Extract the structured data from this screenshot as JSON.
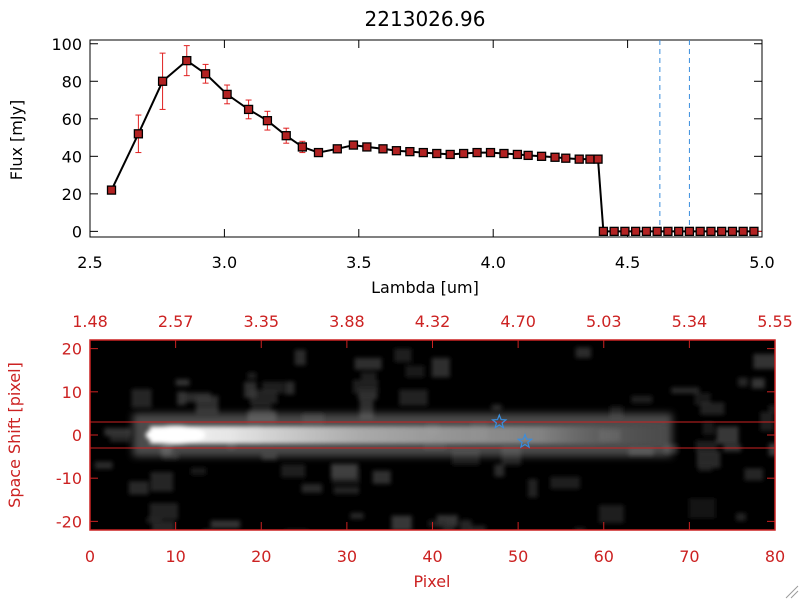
{
  "colors": {
    "axis": "#000000",
    "spectrum_line": "#000000",
    "spectrum_marker": "#b22222",
    "error_bar": "#e02020",
    "marker_line": "#3a8ddd",
    "image_frame": "#cc2222",
    "image_text": "#cc2222",
    "star": "#3a8ddd"
  },
  "chart_data": [
    {
      "type": "line",
      "title": "2213026.96",
      "xlabel": "Lambda [um]",
      "ylabel": "Flux [mJy]",
      "xlim": [
        2.5,
        5.0
      ],
      "ylim": [
        -3,
        102
      ],
      "x_ticks": [
        "2.5",
        "3.0",
        "3.5",
        "4.0",
        "4.5",
        "5.0"
      ],
      "x_tick_values": [
        2.5,
        3.0,
        3.5,
        4.0,
        4.5,
        5.0
      ],
      "y_ticks": [
        "0",
        "20",
        "40",
        "60",
        "80",
        "100"
      ],
      "y_tick_values": [
        0,
        20,
        40,
        60,
        80,
        100
      ],
      "series": [
        {
          "name": "flux",
          "x": [
            2.58,
            2.68,
            2.77,
            2.86,
            2.93,
            3.01,
            3.09,
            3.16,
            3.23,
            3.29,
            3.35,
            3.42,
            3.48,
            3.53,
            3.59,
            3.64,
            3.69,
            3.74,
            3.79,
            3.84,
            3.89,
            3.94,
            3.99,
            4.04,
            4.09,
            4.13,
            4.18,
            4.23,
            4.27,
            4.32,
            4.36,
            4.39,
            4.41,
            4.45,
            4.49,
            4.53,
            4.57,
            4.61,
            4.65,
            4.69,
            4.73,
            4.77,
            4.81,
            4.85,
            4.89,
            4.93,
            4.97
          ],
          "y": [
            22,
            52,
            80,
            91,
            84,
            73,
            65,
            59,
            51,
            45,
            42,
            44,
            46,
            45,
            44,
            43,
            42.5,
            42,
            41.5,
            41,
            41.5,
            42,
            42,
            41.5,
            41,
            40.5,
            40,
            39.5,
            39,
            38.5,
            38.5,
            38.5,
            0,
            0,
            0,
            0,
            0,
            0,
            0,
            0,
            0,
            0,
            0,
            0,
            0,
            0,
            0
          ],
          "yerr": [
            0,
            10,
            15,
            8,
            5,
            5,
            5,
            5,
            4,
            3,
            0,
            0,
            0,
            0,
            0,
            0,
            0,
            0,
            0,
            0,
            0,
            0,
            0,
            0,
            0,
            0,
            0,
            0,
            0,
            0,
            0,
            0,
            0,
            0,
            0,
            0,
            0,
            0,
            0,
            0,
            0,
            0,
            0,
            0,
            0,
            0,
            0
          ]
        }
      ],
      "vertical_lines": [
        4.62,
        4.73
      ]
    },
    {
      "type": "heatmap",
      "xlabel": "Pixel",
      "ylabel": "Space Shift [pixel]",
      "xlim": [
        0,
        80
      ],
      "ylim": [
        -22,
        22
      ],
      "x_ticks": [
        "0",
        "10",
        "20",
        "30",
        "40",
        "50",
        "60",
        "70",
        "80"
      ],
      "x_tick_values": [
        0,
        10,
        20,
        30,
        40,
        50,
        60,
        70,
        80
      ],
      "y_ticks": [
        "-20",
        "-10",
        "0",
        "10",
        "20"
      ],
      "y_tick_values": [
        -20,
        -10,
        0,
        10,
        20
      ],
      "top_axis_ticks": [
        "1.48",
        "2.57",
        "3.35",
        "3.88",
        "4.32",
        "4.70",
        "5.03",
        "5.34",
        "5.55"
      ],
      "top_axis_tick_values": [
        0,
        10,
        20,
        30,
        40,
        50,
        60,
        70,
        80
      ],
      "extraction_window": [
        3,
        -3
      ],
      "trace": {
        "start": 5,
        "end": 68,
        "peak_x": 10,
        "peak_y": 0
      },
      "markers": [
        {
          "label": "star-1",
          "x": 47.8,
          "y": 3
        },
        {
          "label": "star-2",
          "x": 50.8,
          "y": -1.5
        }
      ]
    }
  ]
}
